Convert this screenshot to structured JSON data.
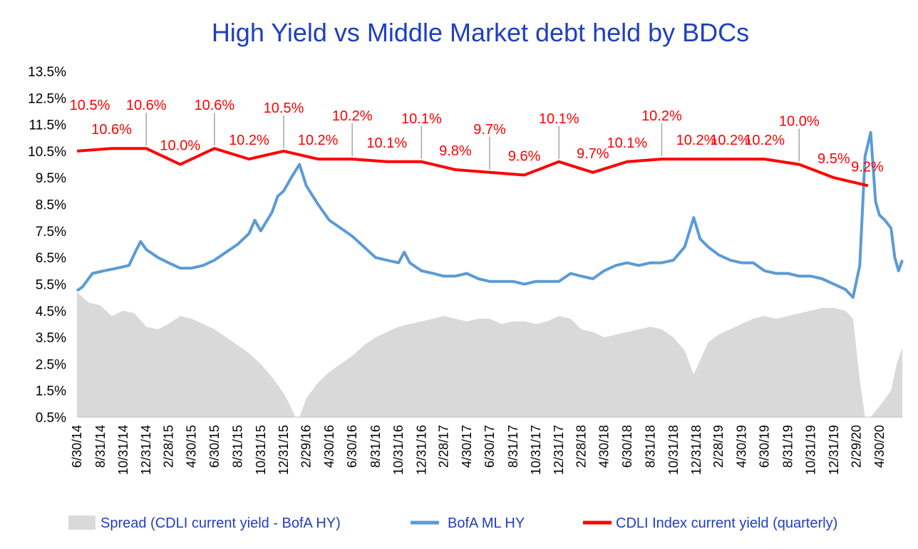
{
  "chart_data": {
    "type": "line",
    "title": "High Yield  vs  Middle Market debt held by BDCs",
    "ylim": [
      0.5,
      13.5
    ],
    "y_ticks": [
      "13.5%",
      "12.5%",
      "11.5%",
      "10.5%",
      "9.5%",
      "8.5%",
      "7.5%",
      "6.5%",
      "5.5%",
      "4.5%",
      "3.5%",
      "2.5%",
      "1.5%",
      "0.5%"
    ],
    "x_ticks": [
      "6/30/14",
      "8/31/14",
      "10/31/14",
      "12/31/14",
      "2/28/15",
      "4/30/15",
      "6/30/15",
      "8/31/15",
      "10/31/15",
      "12/31/15",
      "2/29/16",
      "4/30/16",
      "6/30/16",
      "8/31/16",
      "10/31/16",
      "12/31/16",
      "2/28/17",
      "4/30/17",
      "6/30/17",
      "8/31/17",
      "10/31/17",
      "12/31/17",
      "2/28/18",
      "4/30/18",
      "6/30/18",
      "8/31/18",
      "10/31/18",
      "12/31/18",
      "2/28/19",
      "4/30/19",
      "6/30/19",
      "8/31/19",
      "10/31/19",
      "12/31/19",
      "2/29/20",
      "4/30/20"
    ],
    "x_range": [
      "2014-06-30",
      "2020-06-30"
    ],
    "legend": "bottom",
    "colors": {
      "spread": "#d9d9d9",
      "bofa": "#5b9bd5",
      "cdli": "#ff0000",
      "label": "#ff0000",
      "title": "#1f3fbf"
    },
    "series": [
      {
        "name": "Spread (CDLI current yield - BofA HY)",
        "kind": "area",
        "x": [
          "2014-06-30",
          "2014-07-31",
          "2014-08-31",
          "2014-09-30",
          "2014-10-31",
          "2014-11-30",
          "2014-12-31",
          "2015-01-31",
          "2015-02-28",
          "2015-03-31",
          "2015-04-30",
          "2015-05-31",
          "2015-06-30",
          "2015-07-31",
          "2015-08-31",
          "2015-09-30",
          "2015-10-31",
          "2015-11-30",
          "2015-12-31",
          "2016-01-15",
          "2016-01-31",
          "2016-02-11",
          "2016-02-29",
          "2016-03-31",
          "2016-04-30",
          "2016-05-31",
          "2016-06-30",
          "2016-07-31",
          "2016-08-31",
          "2016-09-30",
          "2016-10-31",
          "2016-11-30",
          "2016-12-31",
          "2017-01-31",
          "2017-02-28",
          "2017-03-31",
          "2017-04-30",
          "2017-05-31",
          "2017-06-30",
          "2017-07-31",
          "2017-08-31",
          "2017-09-30",
          "2017-10-31",
          "2017-11-30",
          "2017-12-31",
          "2018-01-31",
          "2018-02-28",
          "2018-03-31",
          "2018-04-30",
          "2018-05-31",
          "2018-06-30",
          "2018-07-31",
          "2018-08-31",
          "2018-09-30",
          "2018-10-31",
          "2018-11-30",
          "2018-12-24",
          "2019-01-31",
          "2019-02-28",
          "2019-03-31",
          "2019-04-30",
          "2019-05-31",
          "2019-06-30",
          "2019-07-31",
          "2019-08-31",
          "2019-09-30",
          "2019-10-31",
          "2019-11-30",
          "2019-12-31",
          "2020-01-31",
          "2020-02-20",
          "2020-03-10",
          "2020-03-23",
          "2020-04-07",
          "2020-04-30",
          "2020-05-31",
          "2020-06-15",
          "2020-06-30"
        ],
        "values": [
          5.2,
          4.8,
          4.7,
          4.3,
          4.5,
          4.4,
          3.9,
          3.8,
          4.0,
          4.3,
          4.2,
          4.0,
          3.8,
          3.5,
          3.2,
          2.9,
          2.5,
          2.0,
          1.4,
          1.0,
          0.5,
          0.5,
          1.2,
          1.8,
          2.2,
          2.5,
          2.8,
          3.2,
          3.5,
          3.7,
          3.9,
          4.0,
          4.1,
          4.2,
          4.3,
          4.2,
          4.1,
          4.2,
          4.2,
          4.0,
          4.1,
          4.1,
          4.0,
          4.1,
          4.3,
          4.2,
          3.8,
          3.7,
          3.5,
          3.6,
          3.7,
          3.8,
          3.9,
          3.8,
          3.5,
          3.0,
          2.1,
          3.3,
          3.6,
          3.8,
          4.0,
          4.2,
          4.3,
          4.2,
          4.3,
          4.4,
          4.5,
          4.6,
          4.6,
          4.5,
          4.2,
          1.8,
          0.5,
          0.5,
          0.9,
          1.5,
          2.5,
          3.1
        ]
      },
      {
        "name": "BofA ML HY",
        "kind": "line",
        "x": [
          "2014-06-30",
          "2014-07-15",
          "2014-08-10",
          "2014-09-10",
          "2014-10-15",
          "2014-11-15",
          "2014-12-05",
          "2014-12-16",
          "2014-12-31",
          "2015-01-31",
          "2015-02-28",
          "2015-03-31",
          "2015-04-30",
          "2015-05-31",
          "2015-06-30",
          "2015-07-31",
          "2015-08-31",
          "2015-09-30",
          "2015-10-15",
          "2015-10-31",
          "2015-11-30",
          "2015-12-15",
          "2015-12-31",
          "2016-01-20",
          "2016-02-11",
          "2016-02-29",
          "2016-03-31",
          "2016-04-30",
          "2016-05-31",
          "2016-06-30",
          "2016-07-31",
          "2016-08-31",
          "2016-09-30",
          "2016-10-31",
          "2016-11-15",
          "2016-11-30",
          "2016-12-31",
          "2017-01-31",
          "2017-02-28",
          "2017-03-31",
          "2017-04-30",
          "2017-05-31",
          "2017-06-30",
          "2017-07-31",
          "2017-08-31",
          "2017-09-30",
          "2017-10-31",
          "2017-11-30",
          "2017-12-31",
          "2018-01-31",
          "2018-02-28",
          "2018-03-31",
          "2018-04-30",
          "2018-05-31",
          "2018-06-30",
          "2018-07-31",
          "2018-08-31",
          "2018-09-30",
          "2018-10-31",
          "2018-11-30",
          "2018-12-24",
          "2019-01-10",
          "2019-01-31",
          "2019-02-28",
          "2019-03-31",
          "2019-04-30",
          "2019-05-31",
          "2019-06-30",
          "2019-07-31",
          "2019-08-31",
          "2019-09-30",
          "2019-10-31",
          "2019-11-30",
          "2019-12-31",
          "2020-01-31",
          "2020-02-20",
          "2020-03-09",
          "2020-03-23",
          "2020-04-07",
          "2020-04-20",
          "2020-04-30",
          "2020-05-15",
          "2020-05-31",
          "2020-06-10",
          "2020-06-20",
          "2020-06-30"
        ],
        "values": [
          5.25,
          5.4,
          5.9,
          6.0,
          6.1,
          6.2,
          6.8,
          7.1,
          6.8,
          6.5,
          6.3,
          6.1,
          6.1,
          6.2,
          6.4,
          6.7,
          7.0,
          7.4,
          7.9,
          7.5,
          8.2,
          8.8,
          9.0,
          9.5,
          10.0,
          9.2,
          8.5,
          7.9,
          7.6,
          7.3,
          6.9,
          6.5,
          6.4,
          6.3,
          6.7,
          6.3,
          6.0,
          5.9,
          5.8,
          5.8,
          5.9,
          5.7,
          5.6,
          5.6,
          5.6,
          5.5,
          5.6,
          5.6,
          5.6,
          5.9,
          5.8,
          5.7,
          6.0,
          6.2,
          6.3,
          6.2,
          6.3,
          6.3,
          6.4,
          6.9,
          8.0,
          7.2,
          6.9,
          6.6,
          6.4,
          6.3,
          6.3,
          6.0,
          5.9,
          5.9,
          5.8,
          5.8,
          5.7,
          5.5,
          5.3,
          5.0,
          6.2,
          10.3,
          11.2,
          8.6,
          8.1,
          7.9,
          7.6,
          6.5,
          6.0,
          6.4
        ]
      },
      {
        "name": "CDLI Index current yield (quarterly)",
        "kind": "line",
        "x": [
          "2014-06-30",
          "2014-09-30",
          "2014-12-31",
          "2015-03-31",
          "2015-06-30",
          "2015-09-30",
          "2015-12-31",
          "2016-03-31",
          "2016-06-30",
          "2016-09-30",
          "2016-12-31",
          "2017-03-31",
          "2017-06-30",
          "2017-09-30",
          "2017-12-31",
          "2018-03-31",
          "2018-06-30",
          "2018-09-30",
          "2018-12-31",
          "2019-03-31",
          "2019-06-30",
          "2019-09-30",
          "2019-12-31",
          "2020-03-31"
        ],
        "values": [
          10.5,
          10.6,
          10.6,
          10.0,
          10.6,
          10.2,
          10.5,
          10.2,
          10.2,
          10.1,
          10.1,
          9.8,
          9.7,
          9.6,
          10.1,
          9.7,
          10.1,
          10.2,
          10.2,
          10.2,
          10.2,
          10.0,
          9.5,
          9.2
        ]
      }
    ],
    "data_labels": [
      "10.5%",
      "10.6%",
      "10.6%",
      "10.0%",
      "10.6%",
      "10.2%",
      "10.5%",
      "10.2%",
      "10.2%",
      "10.1%",
      "10.1%",
      "9.8%",
      "9.7%",
      "9.6%",
      "10.1%",
      "9.7%",
      "10.1%",
      "10.2%",
      "10.2%",
      "10.2%",
      "10.2%",
      "10.0%",
      "9.5%",
      "9.2%"
    ]
  }
}
